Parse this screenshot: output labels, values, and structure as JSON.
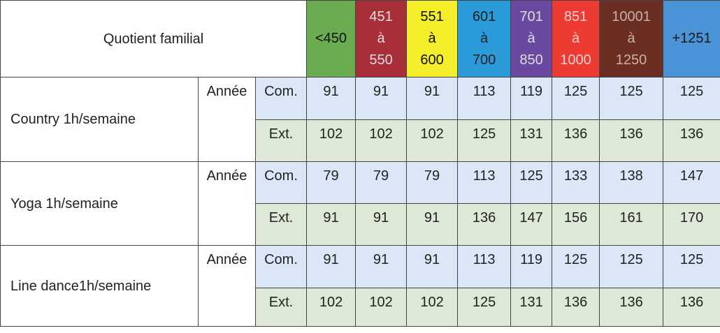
{
  "header": {
    "label": "Quotient familial",
    "bands": [
      {
        "lines": [
          "<450"
        ],
        "color": "#6aac4f",
        "text_color": "#111111"
      },
      {
        "lines": [
          "451",
          "à",
          "550"
        ],
        "color": "#a82f3a",
        "text_color": "#dddddd"
      },
      {
        "lines": [
          "551",
          "à",
          "600"
        ],
        "color": "#f5ee2a",
        "text_color": "#111111"
      },
      {
        "lines": [
          "601",
          "à",
          "700"
        ],
        "color": "#2a9ad8",
        "text_color": "#222222"
      },
      {
        "lines": [
          "701",
          "à",
          "850"
        ],
        "color": "#6a4aa0",
        "text_color": "#dddddd"
      },
      {
        "lines": [
          "851",
          "à",
          "1000"
        ],
        "color": "#ee3b32",
        "text_color": "#f0d0d0"
      },
      {
        "lines": [
          "10001",
          "à",
          "1250"
        ],
        "color": "#6b2e22",
        "text_color": "#c8b0a8"
      },
      {
        "lines": [
          "+1251"
        ],
        "color": "#4a93d6",
        "text_color": "#1a1a1a"
      }
    ]
  },
  "activities": [
    {
      "name": "Country 1h/semaine",
      "period": "Année",
      "rows": [
        {
          "type": "Com.",
          "values": [
            "91",
            "91",
            "91",
            "113",
            "119",
            "125",
            "125",
            "125"
          ]
        },
        {
          "type": "Ext.",
          "values": [
            "102",
            "102",
            "102",
            "125",
            "131",
            "136",
            "136",
            "136"
          ]
        }
      ]
    },
    {
      "name": "Yoga 1h/semaine",
      "period": "Année",
      "rows": [
        {
          "type": "Com.",
          "values": [
            "79",
            "79",
            "79",
            "113",
            "125",
            "133",
            "138",
            "147"
          ]
        },
        {
          "type": "Ext.",
          "values": [
            "91",
            "91",
            "91",
            "136",
            "147",
            "156",
            "161",
            "170"
          ]
        }
      ]
    },
    {
      "name": "Line dance1h/semaine",
      "period": "Année",
      "rows": [
        {
          "type": "Com.",
          "values": [
            "91",
            "91",
            "91",
            "113",
            "119",
            "125",
            "125",
            "125"
          ]
        },
        {
          "type": "Ext.",
          "values": [
            "102",
            "102",
            "102",
            "125",
            "131",
            "136",
            "136",
            "136"
          ]
        }
      ]
    }
  ]
}
